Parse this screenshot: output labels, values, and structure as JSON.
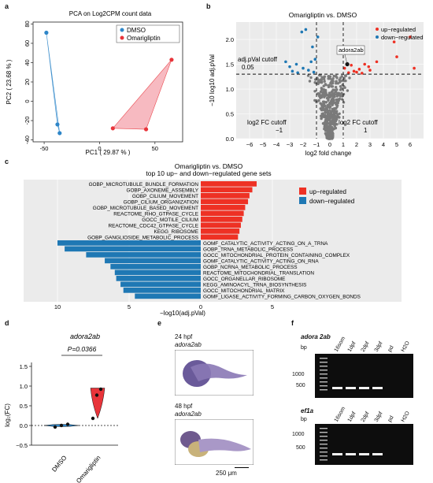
{
  "panel_letters": [
    "a",
    "b",
    "c",
    "d",
    "e",
    "f"
  ],
  "colors": {
    "dmso": "#2e86c8",
    "omarigliptin": "#e8343a",
    "up": "#ee3124",
    "down": "#1f78b4",
    "ns": "#7a7a7a"
  },
  "chart_data": [
    {
      "type": "scatter",
      "panel": "a",
      "title": "PCA on Log2CPM count data",
      "xlabel": "PC1 ( 29.87 % )",
      "ylabel": "PC2 ( 23.68 % )",
      "xlim": [
        -60,
        75
      ],
      "ylim": [
        -42,
        82
      ],
      "xticks": [
        -50,
        0,
        50
      ],
      "yticks": [
        -40,
        -20,
        0,
        20,
        40,
        60,
        80
      ],
      "legend_position": "top-right",
      "series": [
        {
          "name": "DMSO",
          "color": "#2e86c8",
          "points": [
            [
              -48,
              71
            ],
            [
              -38,
              -24
            ],
            [
              -36,
              -33
            ]
          ]
        },
        {
          "name": "Omarigliptin",
          "color": "#e8343a",
          "points": [
            [
              12,
              -28
            ],
            [
              42,
              -29
            ],
            [
              65,
              43
            ]
          ]
        }
      ]
    },
    {
      "type": "scatter",
      "panel": "b",
      "title": "Omarigliptin vs. DMSO",
      "xlabel": "log2 fold change",
      "ylabel": "−10 log10 adj.pVal",
      "xlim": [
        -7,
        7
      ],
      "ylim": [
        0,
        2.35
      ],
      "xticks": [
        "−6",
        "−5",
        "−4",
        "−3",
        "−2",
        "−1",
        "0",
        "1",
        "2",
        "3",
        "4",
        "5",
        "6"
      ],
      "yticks": [
        "0.0",
        "0.5",
        "1.0",
        "1.5",
        "2.0"
      ],
      "legend_position": "top-right",
      "legend": [
        "up−regulated",
        "down−regulated"
      ],
      "cutoffs": {
        "fc": 1,
        "pval": 1.3
      },
      "annotations": [
        "adj.pVal cutoff",
        "0.05",
        "log2 FC cutoff",
        "−1",
        "log2 FC cutoff",
        "1",
        "adora2ab"
      ],
      "highlight": {
        "label": "adora2ab",
        "x": 1.3,
        "y": 1.5
      },
      "up_points": [
        [
          1.4,
          1.33
        ],
        [
          1.8,
          1.36
        ],
        [
          2.2,
          1.4
        ],
        [
          2.9,
          1.45
        ],
        [
          3.5,
          1.55
        ],
        [
          5.0,
          1.65
        ],
        [
          1.1,
          1.42
        ],
        [
          2.4,
          1.32
        ],
        [
          4.8,
          1.95
        ],
        [
          6.0,
          2.05
        ],
        [
          3.0,
          1.38
        ],
        [
          1.6,
          1.48
        ],
        [
          2.0,
          1.34
        ],
        [
          6.3,
          1.42
        ],
        [
          2.6,
          1.5
        ]
      ],
      "down_points": [
        [
          -1.2,
          1.34
        ],
        [
          -1.6,
          1.38
        ],
        [
          -2.0,
          1.42
        ],
        [
          -2.5,
          1.5
        ],
        [
          -1.4,
          1.55
        ],
        [
          -2.8,
          1.36
        ],
        [
          -1.1,
          1.6
        ],
        [
          -3.0,
          1.45
        ],
        [
          -2.1,
          2.15
        ],
        [
          -1.8,
          2.2
        ],
        [
          -3.3,
          1.55
        ],
        [
          -1.3,
          1.85
        ],
        [
          -2.4,
          1.33
        ],
        [
          -0.9,
          2.05
        ]
      ]
    },
    {
      "type": "bar",
      "panel": "c",
      "title": "Omarigliptin vs. DMSO",
      "subtitle": "top 10 up− and down−regulated gene sets",
      "xlabel": "−log10(adj.pVal)",
      "xlim": [
        0,
        12
      ],
      "xticks": [
        "10",
        "5",
        "0",
        "5"
      ],
      "legend_position": "top-right",
      "series": [
        {
          "name": "up−regulated",
          "color": "#ee3124",
          "direction": "up",
          "categories": [
            "GOBP_MICROTUBULE_BUNDLE_FORMATION",
            "GOBP_AXONEME_ASSEMBLY",
            "GOBP_CILIUM_MOVEMENT",
            "GOBP_CILIUM_ORGANIZATION",
            "GOBP_MICROTUBULE_BASED_MOVEMENT",
            "REACTOME_RHO_GTPASE_CYCLE",
            "GOCC_MOTILE_CILIUM",
            "REACTOME_CDC42_GTPASE_CYCLE",
            "KEGG_RIBOSOME",
            "GOBP_GANGLIOSIDE_METABOLIC_PROCESS"
          ],
          "values": [
            3.9,
            3.6,
            3.4,
            3.3,
            3.1,
            3.0,
            2.9,
            2.8,
            2.7,
            2.6
          ]
        },
        {
          "name": "down−regulated",
          "color": "#1f78b4",
          "direction": "down",
          "categories": [
            "GOMF_CATALYTIC_ACTIVITY_ACTING_ON_A_TRNA",
            "GOBP_TRNA_METABOLIC_PROCESS",
            "GOCC_MITOCHONDRIAL_PROTEIN_CONTAINING_COMPLEX",
            "GOMF_CATALYTIC_ACTIVITY_ACTING_ON_RNA",
            "GOBP_NCRNA_METABOLIC_PROCESS",
            "REACTOME_MITOCHONDRIAL_TRANSLATION",
            "GOCC_ORGANELLAR_RIBOSOME",
            "KEGG_AMINOACYL_TRNA_BIOSYNTHESIS",
            "GOCC_MITOCHONDRIAL_MATRIX",
            "GOMF_LIGASE_ACTIVITY_FORMING_CARBON_OXYGEN_BONDS"
          ],
          "values": [
            10.0,
            9.5,
            8.0,
            6.7,
            6.3,
            6.0,
            5.9,
            5.6,
            5.4,
            4.6
          ]
        }
      ]
    },
    {
      "type": "box",
      "panel": "d",
      "title": "adora2ab",
      "ylabel": "log₂(FC)",
      "ylim": [
        -0.5,
        1.5
      ],
      "yticks": [
        "−0.5",
        "0.0",
        "0.5",
        "1.0",
        "1.5"
      ],
      "categories": [
        "DMSO",
        "Omarigliptin"
      ],
      "significance": "P=0.0366",
      "series": [
        {
          "name": "DMSO",
          "color": "#2e86c8",
          "points": [
            -0.04,
            0.0,
            0.03
          ]
        },
        {
          "name": "Omarigliptin",
          "color": "#e8343a",
          "points": [
            0.18,
            0.77,
            0.92
          ]
        }
      ]
    }
  ],
  "panel_e": {
    "top_stage": "24 hpf",
    "top_gene": "adora2ab",
    "bottom_stage": "48 hpf",
    "bottom_gene": "adora2ab",
    "scale_bar": "250 μm"
  },
  "panel_f": {
    "gels": [
      {
        "gene": "adora 2ab",
        "bp_label": "bp",
        "markers": [
          "1000",
          "500"
        ],
        "lanes": [
          "16som",
          "1dpf",
          "2dpf",
          "3dpf",
          "pd",
          "H2O"
        ]
      },
      {
        "gene": "ef1a",
        "bp_label": "bp",
        "markers": [
          "1000",
          "500"
        ],
        "lanes": [
          "16som",
          "1dpf",
          "2dpf",
          "3dpf",
          "pd",
          "H2O"
        ]
      }
    ]
  }
}
